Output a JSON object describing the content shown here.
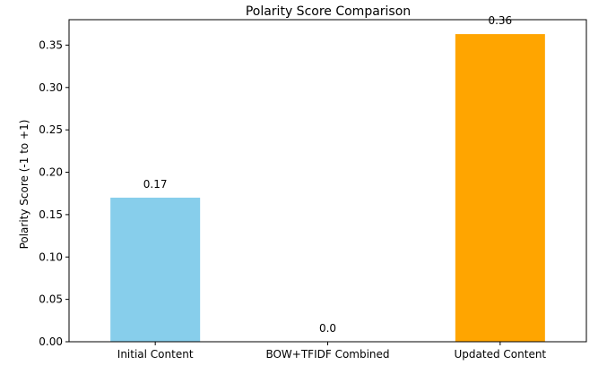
{
  "chart_data": {
    "type": "bar",
    "title": "Polarity Score Comparison",
    "xlabel": "",
    "ylabel": "Polarity Score (-1 to +1)",
    "categories": [
      "Initial Content",
      "BOW+TFIDF Combined",
      "Updated Content"
    ],
    "values": [
      0.17,
      0.0,
      0.363
    ],
    "data_labels": [
      "0.17",
      "0.0",
      "0.36"
    ],
    "colors": [
      "#87ceeb",
      "#87ceeb",
      "#ffa500"
    ],
    "ylim": [
      0,
      0.38
    ],
    "yticks": [
      0.0,
      0.05,
      0.1,
      0.15,
      0.2,
      0.25,
      0.3,
      0.35
    ],
    "ytick_labels": [
      "0.00",
      "0.05",
      "0.10",
      "0.15",
      "0.20",
      "0.25",
      "0.30",
      "0.35"
    ],
    "grid": false,
    "legend": "none"
  }
}
